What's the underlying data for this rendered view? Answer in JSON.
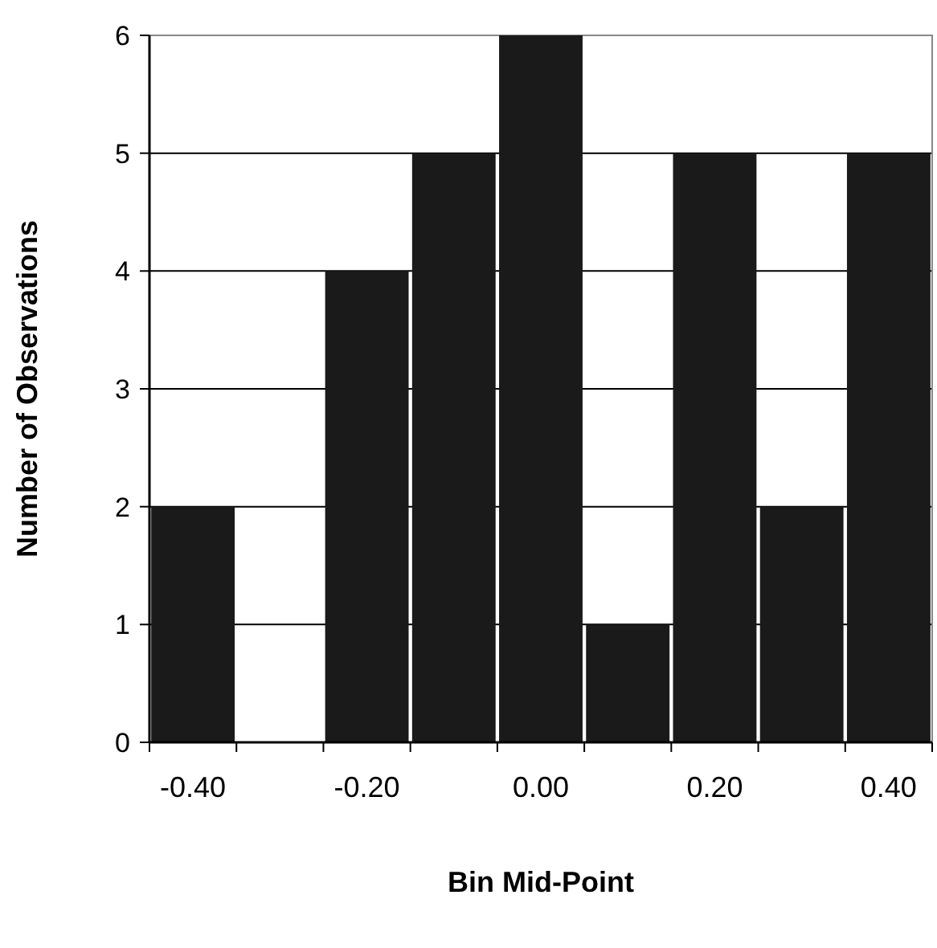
{
  "chart_data": {
    "type": "bar",
    "xlabel": "Bin Mid-Point",
    "ylabel": "Number of Observations",
    "categories": [
      "-0.40",
      null,
      "-0.20",
      null,
      "0.00",
      null,
      "0.20",
      null,
      "0.40"
    ],
    "values": [
      2,
      0,
      4,
      5,
      6,
      1,
      5,
      2,
      5
    ],
    "color": "#1a1a1a",
    "ylim": [
      0,
      6
    ],
    "yticks": [
      0,
      1,
      2,
      3,
      4,
      5,
      6
    ],
    "grid": "y"
  }
}
